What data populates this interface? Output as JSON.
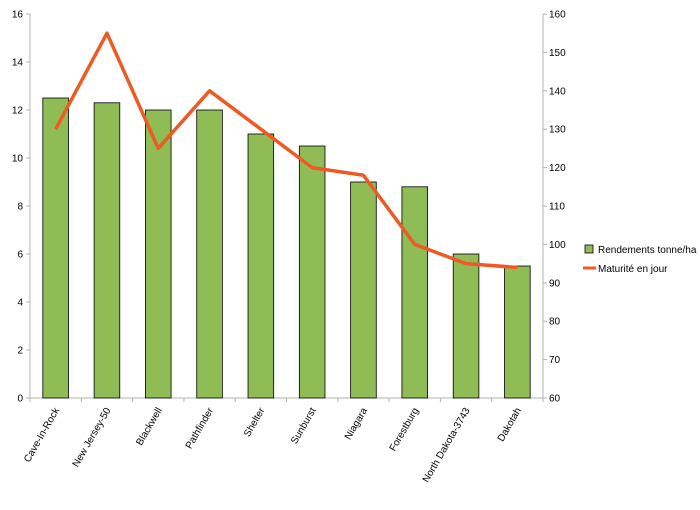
{
  "chart_data": {
    "type": "bar",
    "categories": [
      "Cave-In-Rock",
      "New Jersey-50",
      "Blackwell",
      "Pathfinder",
      "Shelter",
      "Sunburst",
      "Niagara",
      "Forestburg",
      "North Dakota-3743",
      "Dakotah"
    ],
    "series": [
      {
        "name": "Rendements tonne/ha",
        "type": "bar",
        "axis": "left",
        "values": [
          12.5,
          12.3,
          12.0,
          12.0,
          11.0,
          10.5,
          9.0,
          8.8,
          6.0,
          5.5
        ]
      },
      {
        "name": "Maturité en jour",
        "type": "line",
        "axis": "right",
        "values": [
          130,
          155,
          125,
          140,
          130,
          120,
          118,
          100,
          95,
          94
        ]
      }
    ],
    "ylim": [
      0,
      16
    ],
    "yticks": [
      0,
      2,
      4,
      6,
      8,
      10,
      12,
      14,
      16
    ],
    "y2lim": [
      60,
      160
    ],
    "y2ticks": [
      60,
      70,
      80,
      90,
      100,
      110,
      120,
      130,
      140,
      150,
      160
    ],
    "grid": false,
    "legend_position": "right",
    "colors": {
      "bar": "#8fbc55",
      "bar_stroke": "#000000",
      "line": "#ee5a24"
    }
  }
}
